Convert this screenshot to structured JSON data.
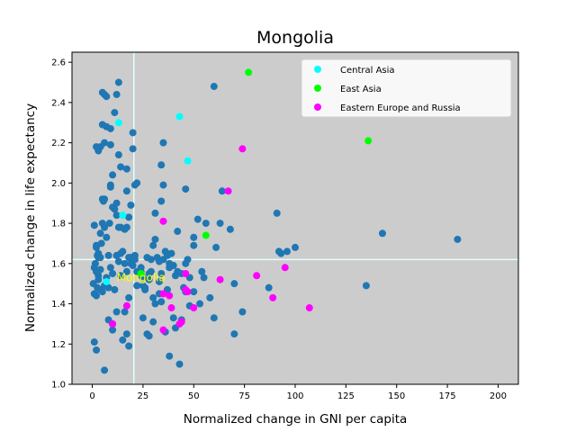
{
  "chart_data": {
    "type": "scatter",
    "title": "Mongolia",
    "xlabel": "Normalized change in GNI per capita",
    "ylabel": "Normalized change in life expectancy",
    "xlim": [
      -10,
      210
    ],
    "ylim": [
      1.0,
      2.65
    ],
    "xticks": [
      0,
      25,
      50,
      75,
      100,
      125,
      150,
      175,
      200
    ],
    "yticks": [
      1.0,
      1.2,
      1.4,
      1.6,
      1.8,
      2.0,
      2.2,
      2.4,
      2.6
    ],
    "grid": false,
    "background": "#cccccc",
    "reference_lines": {
      "x": 20.5,
      "y": 1.62,
      "color": "#e0ffff"
    },
    "annotation": {
      "text": "Mongolia",
      "x": 12,
      "y": 1.53,
      "color": "#ffff00"
    },
    "legend_position": "top-right",
    "base_color": "#1f77b4",
    "points": [
      [
        1.0,
        1.79
      ],
      [
        2.0,
        1.68
      ],
      [
        3.0,
        1.63
      ],
      [
        2.5,
        1.64
      ],
      [
        1.5,
        1.6
      ],
      [
        0.5,
        1.5
      ],
      [
        1.0,
        1.45
      ],
      [
        2.0,
        1.44
      ],
      [
        3.0,
        1.52
      ],
      [
        1.0,
        1.21
      ],
      [
        2.0,
        1.17
      ],
      [
        4.0,
        1.63
      ],
      [
        4.5,
        1.7
      ],
      [
        5.0,
        1.8
      ],
      [
        5.5,
        1.91
      ],
      [
        6.0,
        1.78
      ],
      [
        7.0,
        1.73
      ],
      [
        8.5,
        1.8
      ],
      [
        9.0,
        1.98
      ],
      [
        10.0,
        1.88
      ],
      [
        11.0,
        1.87
      ],
      [
        12.0,
        1.84
      ],
      [
        13.0,
        1.78
      ],
      [
        14.0,
        1.78
      ],
      [
        16.0,
        1.77
      ],
      [
        17.0,
        1.78
      ],
      [
        18.0,
        1.63
      ],
      [
        19.0,
        1.6
      ],
      [
        20.0,
        1.59
      ],
      [
        21.0,
        1.62
      ],
      [
        22.0,
        1.56
      ],
      [
        24.0,
        1.54
      ],
      [
        25.0,
        1.49
      ],
      [
        26.0,
        1.48
      ],
      [
        28.0,
        1.55
      ],
      [
        29.0,
        1.62
      ],
      [
        30.0,
        1.69
      ],
      [
        31.0,
        1.72
      ],
      [
        32.0,
        1.63
      ],
      [
        33.0,
        1.61
      ],
      [
        34.0,
        1.55
      ],
      [
        35.0,
        1.62
      ],
      [
        36.0,
        1.66
      ],
      [
        37.0,
        1.64
      ],
      [
        38.0,
        1.58
      ],
      [
        40.0,
        1.59
      ],
      [
        42.0,
        1.56
      ],
      [
        44.0,
        1.55
      ],
      [
        46.0,
        1.6
      ],
      [
        48.0,
        1.53
      ],
      [
        5.0,
        2.45
      ],
      [
        6.0,
        2.44
      ],
      [
        7.0,
        2.43
      ],
      [
        11.0,
        2.35
      ],
      [
        12.0,
        2.44
      ],
      [
        13.0,
        2.5
      ],
      [
        5.0,
        2.29
      ],
      [
        7.0,
        2.28
      ],
      [
        9.0,
        2.27
      ],
      [
        4.0,
        2.18
      ],
      [
        2.0,
        2.18
      ],
      [
        3.0,
        2.16
      ],
      [
        6.0,
        2.2
      ],
      [
        9.0,
        2.19
      ],
      [
        10.0,
        2.04
      ],
      [
        13.0,
        2.14
      ],
      [
        14.0,
        2.08
      ],
      [
        17.0,
        2.07
      ],
      [
        17.0,
        1.96
      ],
      [
        20.0,
        2.25
      ],
      [
        20.0,
        2.17
      ],
      [
        22.0,
        2.0
      ],
      [
        21.0,
        1.99
      ],
      [
        19.0,
        1.89
      ],
      [
        9.0,
        1.99
      ],
      [
        5.0,
        1.92
      ],
      [
        6.0,
        1.92
      ],
      [
        4.0,
        1.75
      ],
      [
        3.0,
        1.65
      ],
      [
        2.0,
        1.69
      ],
      [
        6.0,
        1.07
      ],
      [
        8.0,
        1.32
      ],
      [
        10.0,
        1.3
      ],
      [
        10.0,
        1.27
      ],
      [
        15.0,
        1.22
      ],
      [
        18.0,
        1.19
      ],
      [
        17.0,
        1.25
      ],
      [
        12.0,
        1.36
      ],
      [
        16.0,
        1.36
      ],
      [
        18.0,
        1.43
      ],
      [
        22.0,
        1.49
      ],
      [
        24.0,
        1.56
      ],
      [
        25.0,
        1.33
      ],
      [
        27.0,
        1.25
      ],
      [
        28.0,
        1.24
      ],
      [
        30.0,
        1.31
      ],
      [
        31.0,
        1.4
      ],
      [
        33.0,
        1.45
      ],
      [
        34.0,
        1.41
      ],
      [
        36.0,
        1.26
      ],
      [
        37.0,
        1.47
      ],
      [
        38.0,
        1.14
      ],
      [
        40.0,
        1.33
      ],
      [
        41.0,
        1.28
      ],
      [
        43.0,
        1.1
      ],
      [
        44.0,
        1.32
      ],
      [
        46.0,
        1.46
      ],
      [
        48.0,
        1.39
      ],
      [
        50.0,
        1.46
      ],
      [
        53.0,
        1.4
      ],
      [
        55.0,
        1.53
      ],
      [
        56.0,
        1.8
      ],
      [
        58.0,
        1.43
      ],
      [
        60.0,
        1.33
      ],
      [
        61.0,
        1.68
      ],
      [
        63.0,
        1.8
      ],
      [
        64.0,
        1.96
      ],
      [
        68.0,
        1.77
      ],
      [
        70.0,
        1.5
      ],
      [
        70.0,
        1.25
      ],
      [
        74.0,
        1.36
      ],
      [
        54.0,
        1.56
      ],
      [
        52.0,
        1.82
      ],
      [
        50.0,
        1.69
      ],
      [
        50.0,
        1.73
      ],
      [
        46.0,
        1.97
      ],
      [
        42.0,
        1.76
      ],
      [
        38.0,
        1.6
      ],
      [
        35.0,
        1.99
      ],
      [
        34.0,
        1.91
      ],
      [
        31.0,
        1.85
      ],
      [
        34.0,
        2.09
      ],
      [
        35.0,
        2.2
      ],
      [
        60.0,
        2.48
      ],
      [
        39.0,
        1.65
      ],
      [
        30.0,
        1.43
      ],
      [
        28.0,
        1.52
      ],
      [
        26.0,
        1.47
      ],
      [
        25.0,
        1.53
      ],
      [
        24.0,
        1.58
      ],
      [
        21.0,
        1.64
      ],
      [
        19.0,
        1.63
      ],
      [
        17.0,
        1.56
      ],
      [
        16.0,
        1.6
      ],
      [
        14.0,
        1.54
      ],
      [
        13.0,
        1.61
      ],
      [
        12.0,
        1.64
      ],
      [
        11.0,
        1.47
      ],
      [
        10.0,
        1.55
      ],
      [
        9.0,
        1.58
      ],
      [
        8.0,
        1.48
      ],
      [
        7.0,
        1.53
      ],
      [
        6.0,
        1.49
      ],
      [
        5.0,
        1.46
      ],
      [
        4.0,
        1.47
      ],
      [
        3.0,
        1.54
      ],
      [
        1.0,
        1.58
      ],
      [
        2.0,
        1.56
      ],
      [
        4.0,
        1.57
      ],
      [
        8.0,
        1.64
      ],
      [
        15.0,
        1.66
      ],
      [
        91.0,
        1.85
      ],
      [
        93.0,
        1.65
      ],
      [
        96.0,
        1.66
      ],
      [
        100.0,
        1.68
      ],
      [
        92.0,
        1.66
      ],
      [
        87.0,
        1.48
      ],
      [
        135.0,
        1.49
      ],
      [
        143.0,
        1.75
      ],
      [
        180.0,
        1.72
      ],
      [
        12.0,
        1.9
      ],
      [
        14.0,
        1.65
      ],
      [
        18.0,
        1.83
      ],
      [
        27.0,
        1.63
      ],
      [
        29.0,
        1.56
      ],
      [
        33.0,
        1.51
      ],
      [
        41.0,
        1.54
      ],
      [
        45.0,
        1.48
      ],
      [
        47.0,
        1.62
      ],
      [
        2.5,
        1.48
      ]
    ],
    "series": [
      {
        "name": "Central Asia",
        "color": "#00ffff",
        "points": [
          [
            13.0,
            2.3
          ],
          [
            43.0,
            2.33
          ],
          [
            47.0,
            2.11
          ],
          [
            15.0,
            1.84
          ],
          [
            7.0,
            1.51
          ]
        ]
      },
      {
        "name": "East Asia",
        "color": "#00ff00",
        "points": [
          [
            77.0,
            2.55
          ],
          [
            136.0,
            2.21
          ],
          [
            56.0,
            1.74
          ],
          [
            24.0,
            1.55
          ]
        ]
      },
      {
        "name": "Eastern Europe and Russia",
        "color": "#ff00ff",
        "points": [
          [
            74.0,
            2.17
          ],
          [
            67.0,
            1.96
          ],
          [
            35.0,
            1.81
          ],
          [
            46.0,
            1.55
          ],
          [
            38.0,
            1.44
          ],
          [
            35.0,
            1.45
          ],
          [
            46.0,
            1.47
          ],
          [
            47.0,
            1.46
          ],
          [
            63.0,
            1.52
          ],
          [
            81.0,
            1.54
          ],
          [
            95.0,
            1.58
          ],
          [
            89.0,
            1.43
          ],
          [
            107.0,
            1.38
          ],
          [
            50.0,
            1.38
          ],
          [
            39.0,
            1.38
          ],
          [
            35.0,
            1.27
          ],
          [
            43.0,
            1.3
          ],
          [
            44.0,
            1.31
          ],
          [
            10.0,
            1.3
          ],
          [
            17.0,
            1.39
          ]
        ]
      }
    ]
  }
}
